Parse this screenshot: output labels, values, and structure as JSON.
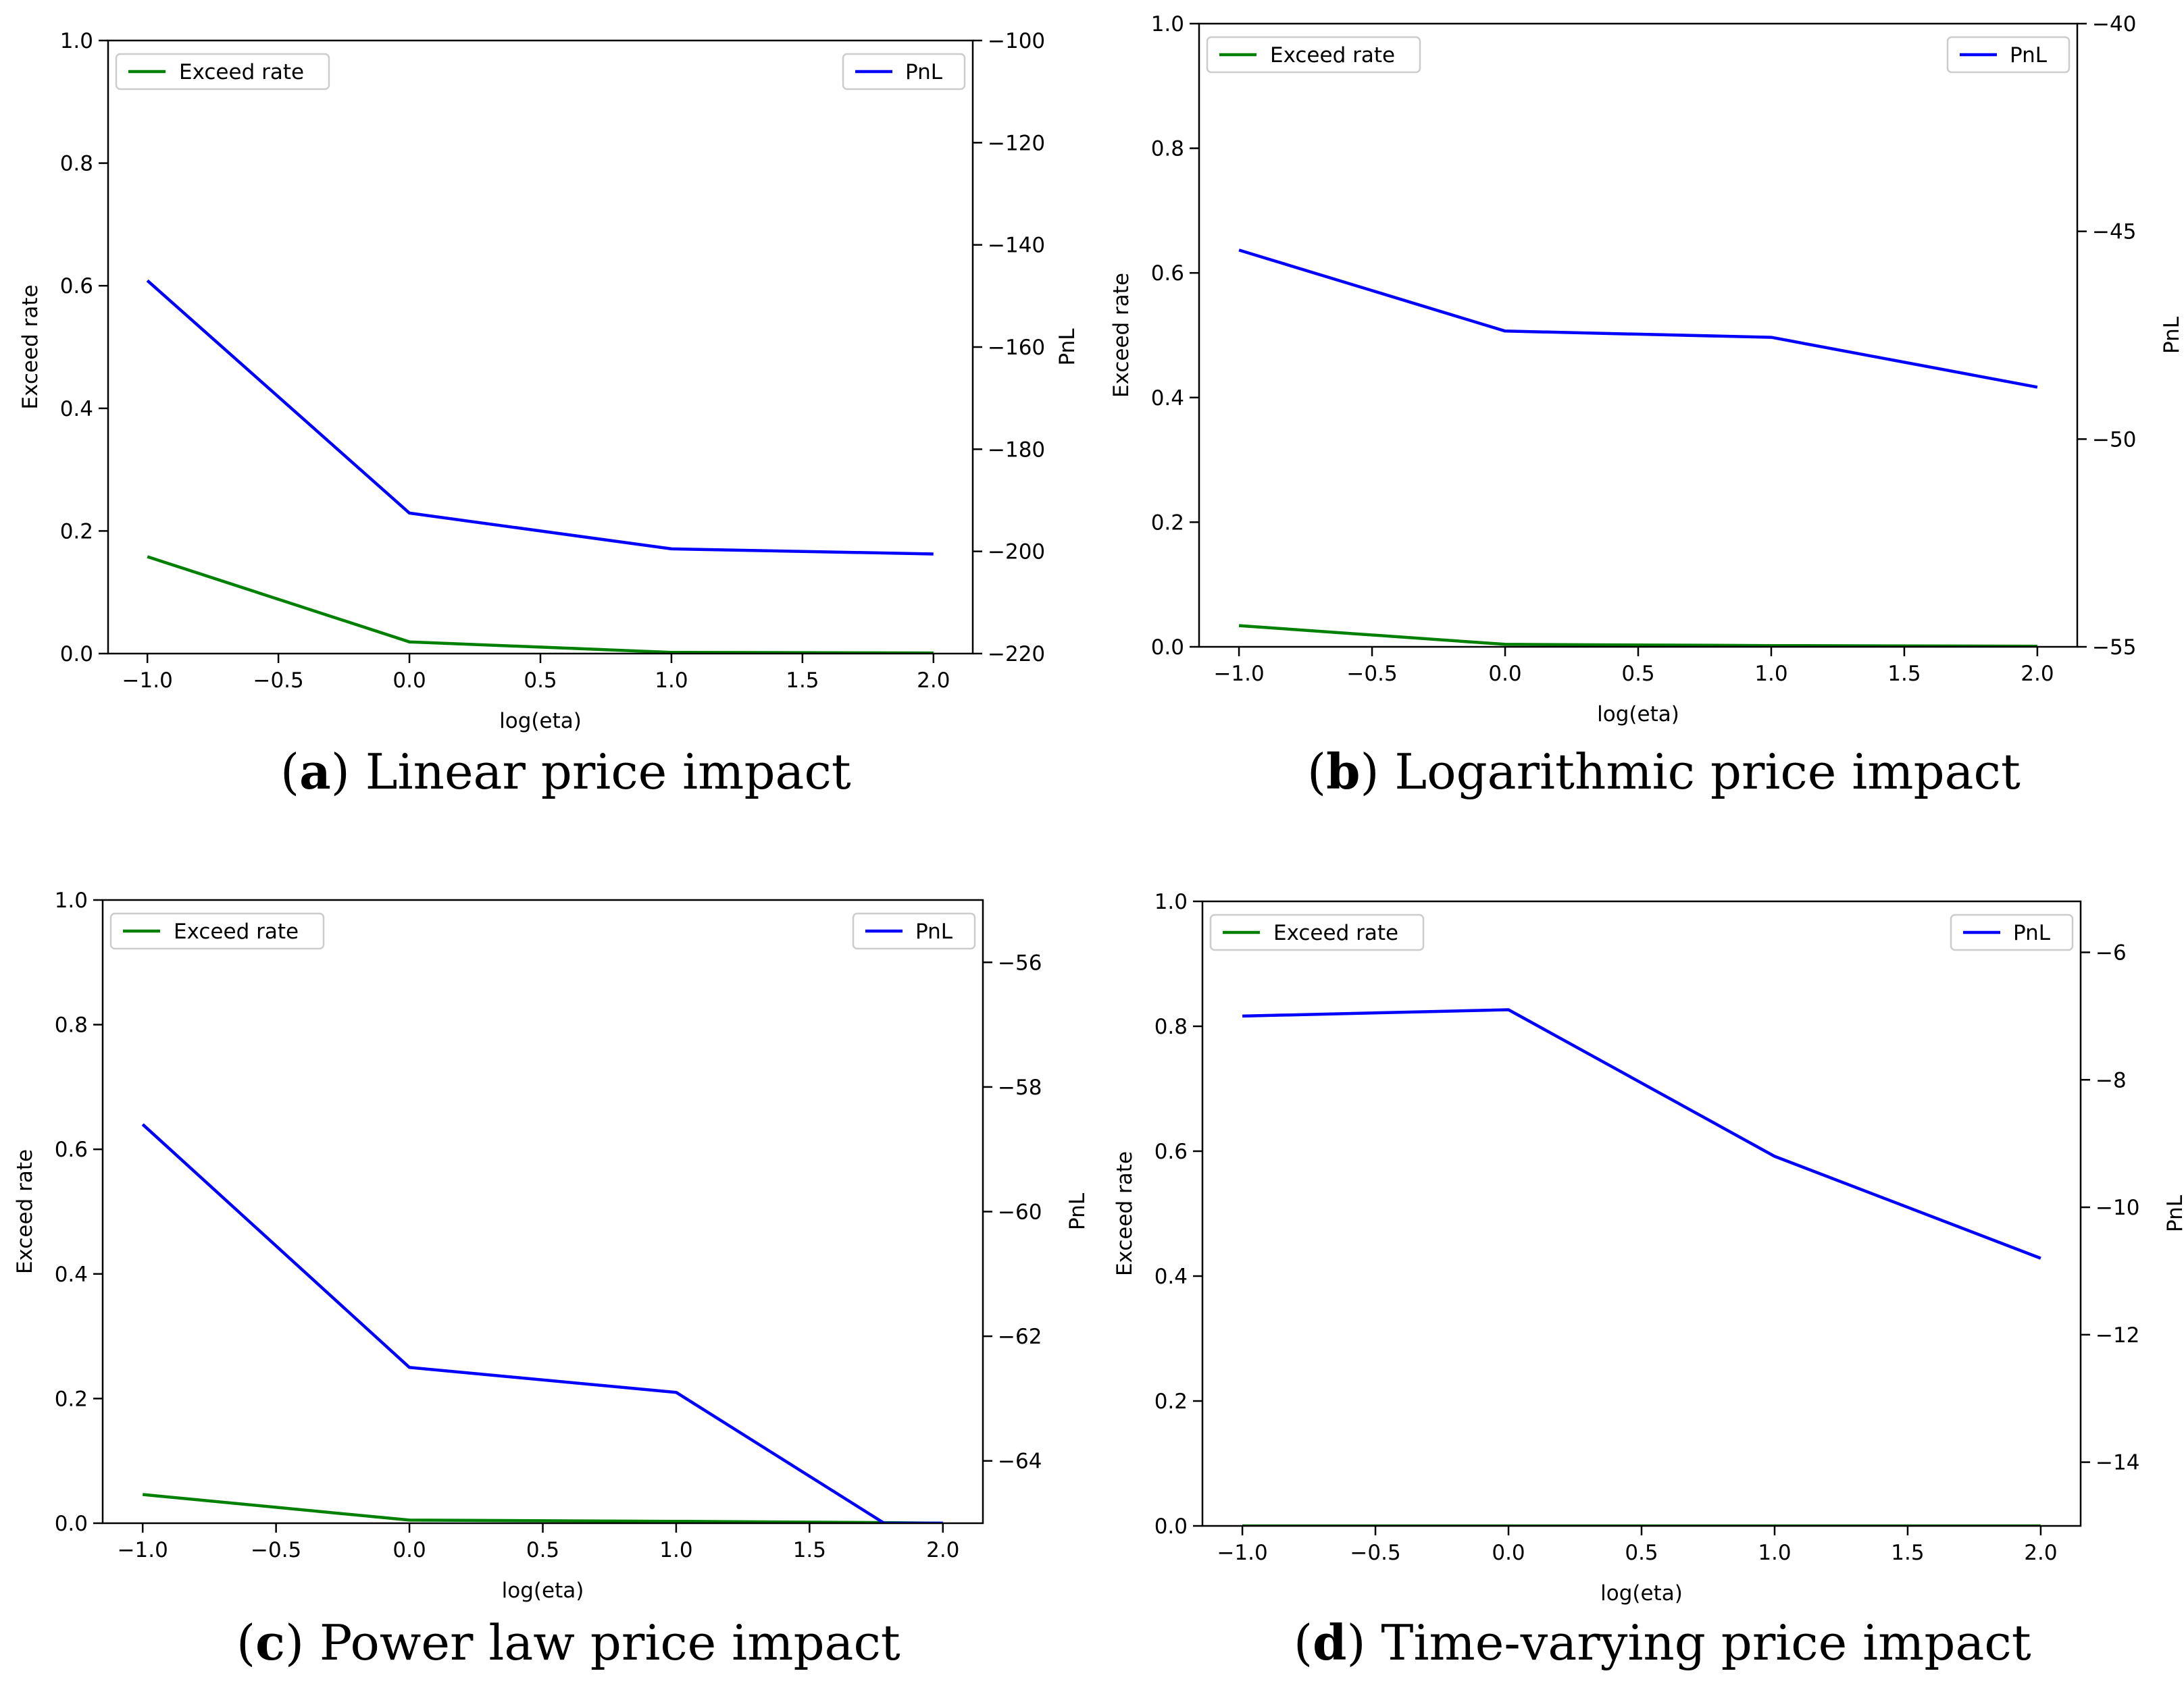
{
  "chart_data": [
    {
      "type": "line",
      "caption_letter": "a",
      "caption_text": "Linear price impact",
      "xlabel": "log(eta)",
      "ylabel": "Exceed rate",
      "y2label": "PnL",
      "xlim": [
        -1.15,
        2.15
      ],
      "ylim": [
        0,
        1
      ],
      "y2lim": [
        -220,
        -100
      ],
      "xticks": [
        -1.0,
        -0.5,
        0.0,
        0.5,
        1.0,
        1.5,
        2.0
      ],
      "xtick_labels": [
        "−1.0",
        "−0.5",
        "0.0",
        "0.5",
        "1.0",
        "1.5",
        "2.0"
      ],
      "yticks": [
        0.0,
        0.2,
        0.4,
        0.6,
        0.8,
        1.0
      ],
      "ytick_labels": [
        "0.0",
        "0.2",
        "0.4",
        "0.6",
        "0.8",
        "1.0"
      ],
      "y2ticks": [
        -220,
        -200,
        -180,
        -160,
        -140,
        -120,
        -100
      ],
      "y2tick_labels": [
        "−220",
        "−200",
        "−180",
        "−160",
        "−140",
        "−120",
        "−100"
      ],
      "x": [
        -1,
        0,
        1,
        2
      ],
      "series": [
        {
          "name": "Exceed rate",
          "axis": "left",
          "color": "#008000",
          "values": [
            0.158,
            0.019,
            0.002,
            0.001
          ]
        },
        {
          "name": "PnL",
          "axis": "right",
          "color": "#0000ff",
          "values": [
            -147,
            -192.5,
            -199.5,
            -200.5
          ]
        }
      ],
      "legend_left": "Exceed rate",
      "legend_right": "PnL"
    },
    {
      "type": "line",
      "caption_letter": "b",
      "caption_text": "Logarithmic price impact",
      "xlabel": "log(eta)",
      "ylabel": "Exceed rate",
      "y2label": "PnL",
      "xlim": [
        -1.15,
        2.15
      ],
      "ylim": [
        0,
        1
      ],
      "y2lim": [
        -55,
        -40
      ],
      "xticks": [
        -1.0,
        -0.5,
        0.0,
        0.5,
        1.0,
        1.5,
        2.0
      ],
      "xtick_labels": [
        "−1.0",
        "−0.5",
        "0.0",
        "0.5",
        "1.0",
        "1.5",
        "2.0"
      ],
      "yticks": [
        0.0,
        0.2,
        0.4,
        0.6,
        0.8,
        1.0
      ],
      "ytick_labels": [
        "0.0",
        "0.2",
        "0.4",
        "0.6",
        "0.8",
        "1.0"
      ],
      "y2ticks": [
        -55,
        -50,
        -45,
        -40
      ],
      "y2tick_labels": [
        "−55",
        "−50",
        "−45",
        "−40"
      ],
      "x": [
        -1,
        0,
        1,
        2
      ],
      "series": [
        {
          "name": "Exceed rate",
          "axis": "left",
          "color": "#008000",
          "values": [
            0.034,
            0.004,
            0.002,
            0.001
          ]
        },
        {
          "name": "PnL",
          "axis": "right",
          "color": "#0000ff",
          "values": [
            -45.45,
            -47.4,
            -47.55,
            -48.75
          ]
        }
      ],
      "legend_left": "Exceed rate",
      "legend_right": "PnL"
    },
    {
      "type": "line",
      "caption_letter": "c",
      "caption_text": "Power law price impact",
      "xlabel": "log(eta)",
      "ylabel": "Exceed rate",
      "y2label": "PnL",
      "xlim": [
        -1.15,
        2.15
      ],
      "ylim": [
        0,
        1
      ],
      "y2lim": [
        -65,
        -55
      ],
      "xticks": [
        -1.0,
        -0.5,
        0.0,
        0.5,
        1.0,
        1.5,
        2.0
      ],
      "xtick_labels": [
        "−1.0",
        "−0.5",
        "0.0",
        "0.5",
        "1.0",
        "1.5",
        "2.0"
      ],
      "yticks": [
        0.0,
        0.2,
        0.4,
        0.6,
        0.8,
        1.0
      ],
      "ytick_labels": [
        "0.0",
        "0.2",
        "0.4",
        "0.6",
        "0.8",
        "1.0"
      ],
      "y2ticks": [
        -64,
        -62,
        -60,
        -58,
        -56
      ],
      "y2tick_labels": [
        "−64",
        "−62",
        "−60",
        "−58",
        "−56"
      ],
      "x": [
        -1,
        0,
        1,
        1.78,
        2
      ],
      "series": [
        {
          "name": "Exceed rate",
          "axis": "left",
          "color": "#008000",
          "values": [
            0.046,
            0.005,
            0.003,
            0.001,
            0.0
          ]
        },
        {
          "name": "PnL",
          "axis": "right",
          "color": "#0000ff",
          "values": [
            -58.6,
            -62.5,
            -62.9,
            -65.0,
            -65.0
          ]
        }
      ],
      "legend_left": "Exceed rate",
      "legend_right": "PnL"
    },
    {
      "type": "line",
      "caption_letter": "d",
      "caption_text": "Time-varying price impact",
      "xlabel": "log(eta)",
      "ylabel": "Exceed rate",
      "y2label": "PnL",
      "xlim": [
        -1.15,
        2.15
      ],
      "ylim": [
        0,
        1
      ],
      "y2lim": [
        -15,
        -5.2
      ],
      "xticks": [
        -1.0,
        -0.5,
        0.0,
        0.5,
        1.0,
        1.5,
        2.0
      ],
      "xtick_labels": [
        "−1.0",
        "−0.5",
        "0.0",
        "0.5",
        "1.0",
        "1.5",
        "2.0"
      ],
      "yticks": [
        0.0,
        0.2,
        0.4,
        0.6,
        0.8,
        1.0
      ],
      "ytick_labels": [
        "0.0",
        "0.2",
        "0.4",
        "0.6",
        "0.8",
        "1.0"
      ],
      "y2ticks": [
        -14,
        -12,
        -10,
        -8,
        -6
      ],
      "y2tick_labels": [
        "−14",
        "−12",
        "−10",
        "−8",
        "−6"
      ],
      "x": [
        -1,
        0,
        1,
        2
      ],
      "series": [
        {
          "name": "Exceed rate",
          "axis": "left",
          "color": "#008000",
          "values": [
            0.0,
            0.0,
            0.0,
            0.0
          ]
        },
        {
          "name": "PnL",
          "axis": "right",
          "color": "#0000ff",
          "values": [
            -7.0,
            -6.9,
            -9.2,
            -10.8
          ]
        }
      ],
      "legend_left": "Exceed rate",
      "legend_right": "PnL"
    }
  ]
}
